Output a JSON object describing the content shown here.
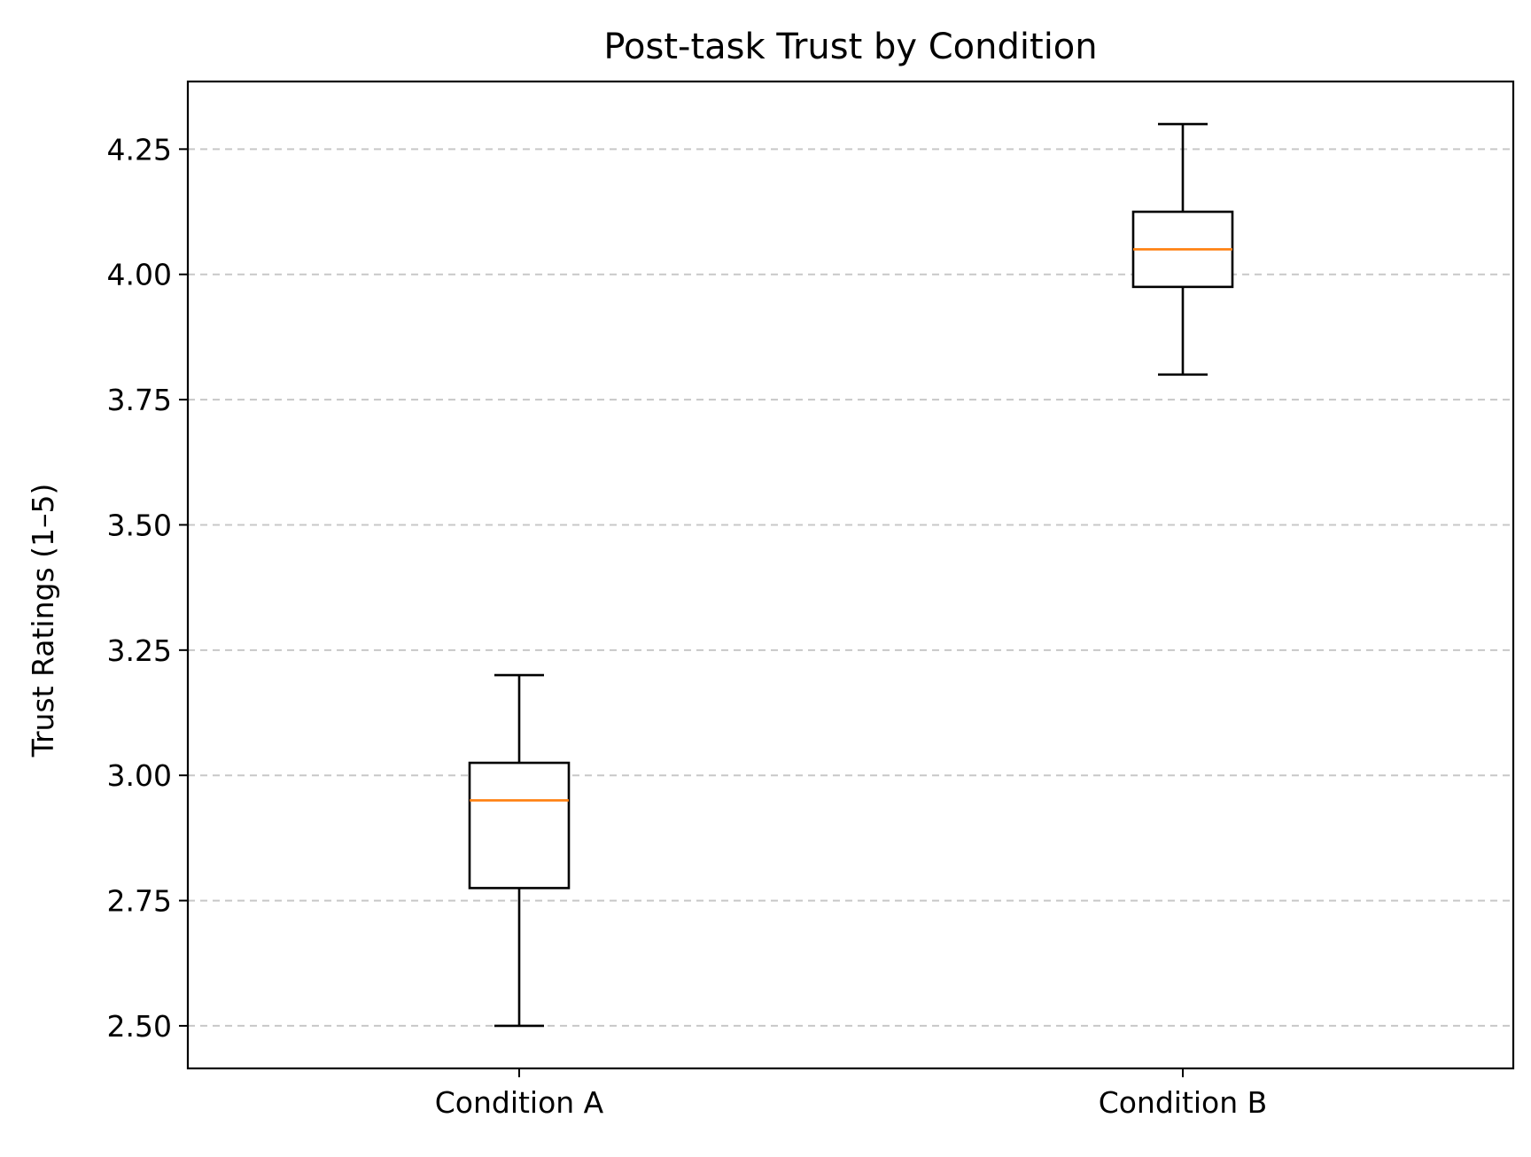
{
  "chart_data": {
    "type": "box",
    "title": "Post-task Trust by Condition",
    "xlabel": "",
    "ylabel": "Trust Ratings (1–5)",
    "categories": [
      "Condition A",
      "Condition B"
    ],
    "boxes": [
      {
        "category": "Condition A",
        "whisker_low": 2.5,
        "q1": 2.775,
        "median": 2.95,
        "q3": 3.025,
        "whisker_high": 3.2
      },
      {
        "category": "Condition B",
        "whisker_low": 3.8,
        "q1": 3.975,
        "median": 4.05,
        "q3": 4.125,
        "whisker_high": 4.3
      }
    ],
    "ylim": [
      2.415,
      4.385
    ],
    "yticks": [
      2.5,
      2.75,
      3.0,
      3.25,
      3.5,
      3.75,
      4.0,
      4.25
    ],
    "ytick_labels": [
      "2.50",
      "2.75",
      "3.00",
      "3.25",
      "3.50",
      "3.75",
      "4.00",
      "4.25"
    ],
    "grid": {
      "axis": "y",
      "style": "dashed",
      "color": "#c8c8c8"
    },
    "colors": {
      "box": "#000000",
      "median": "#ff7f0e",
      "grid": "#c8c8c8",
      "axes": "#000000"
    },
    "legend": "none"
  }
}
